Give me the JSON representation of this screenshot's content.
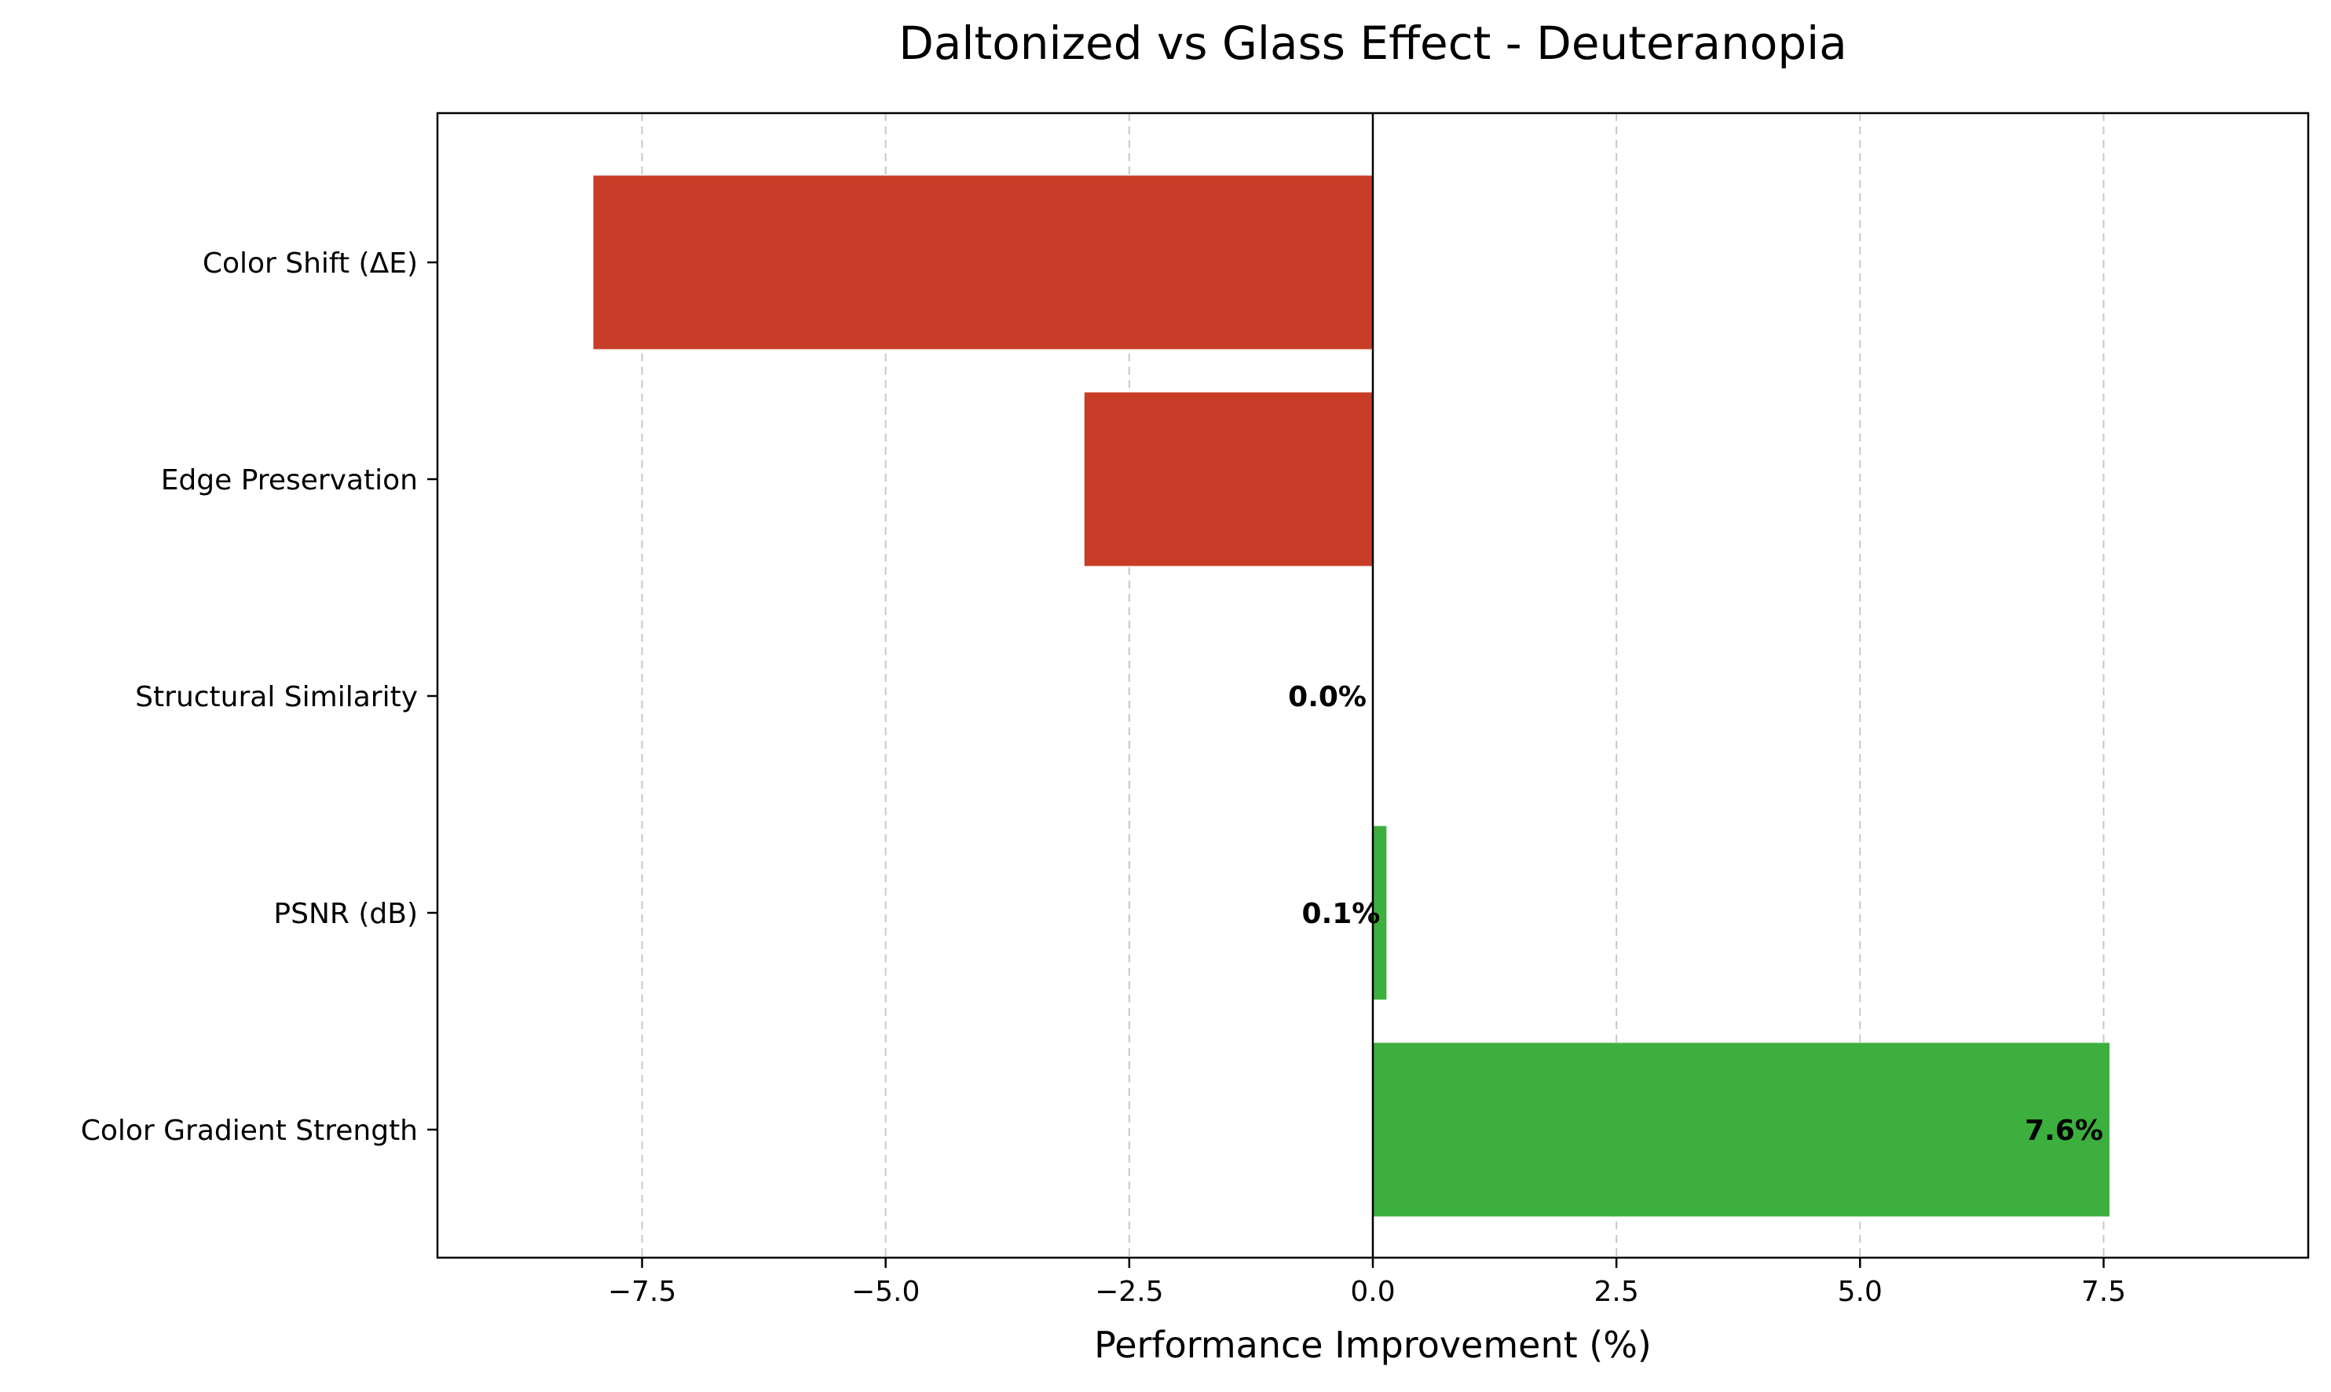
{
  "chart_data": {
    "type": "bar",
    "orientation": "horizontal",
    "title": "Daltonized vs Glass Effect - Deuteranopia",
    "xlabel": "Performance Improvement (%)",
    "ylabel": "",
    "categories": [
      "Color Shift (ΔE)",
      "Edge Preservation",
      "Structural Similarity",
      "PSNR (dB)",
      "Color Gradient Strength"
    ],
    "values": [
      -8.0,
      -2.96,
      0.0,
      0.14,
      7.56
    ],
    "data_labels": [
      "",
      "",
      "0.0%",
      "0.1%",
      "7.6%"
    ],
    "xlim": [
      -9.6,
      9.6
    ],
    "xticks": [
      -7.5,
      -5.0,
      -2.5,
      0.0,
      2.5,
      5.0,
      7.5
    ],
    "xtick_labels": [
      "−7.5",
      "−5.0",
      "−2.5",
      "0.0",
      "2.5",
      "5.0",
      "7.5"
    ],
    "grid": "x-dashed",
    "colors": {
      "negative": "#c83d27",
      "positive": "#3caf3e",
      "grid": "#c8c8c8",
      "axis": "#000000"
    }
  }
}
